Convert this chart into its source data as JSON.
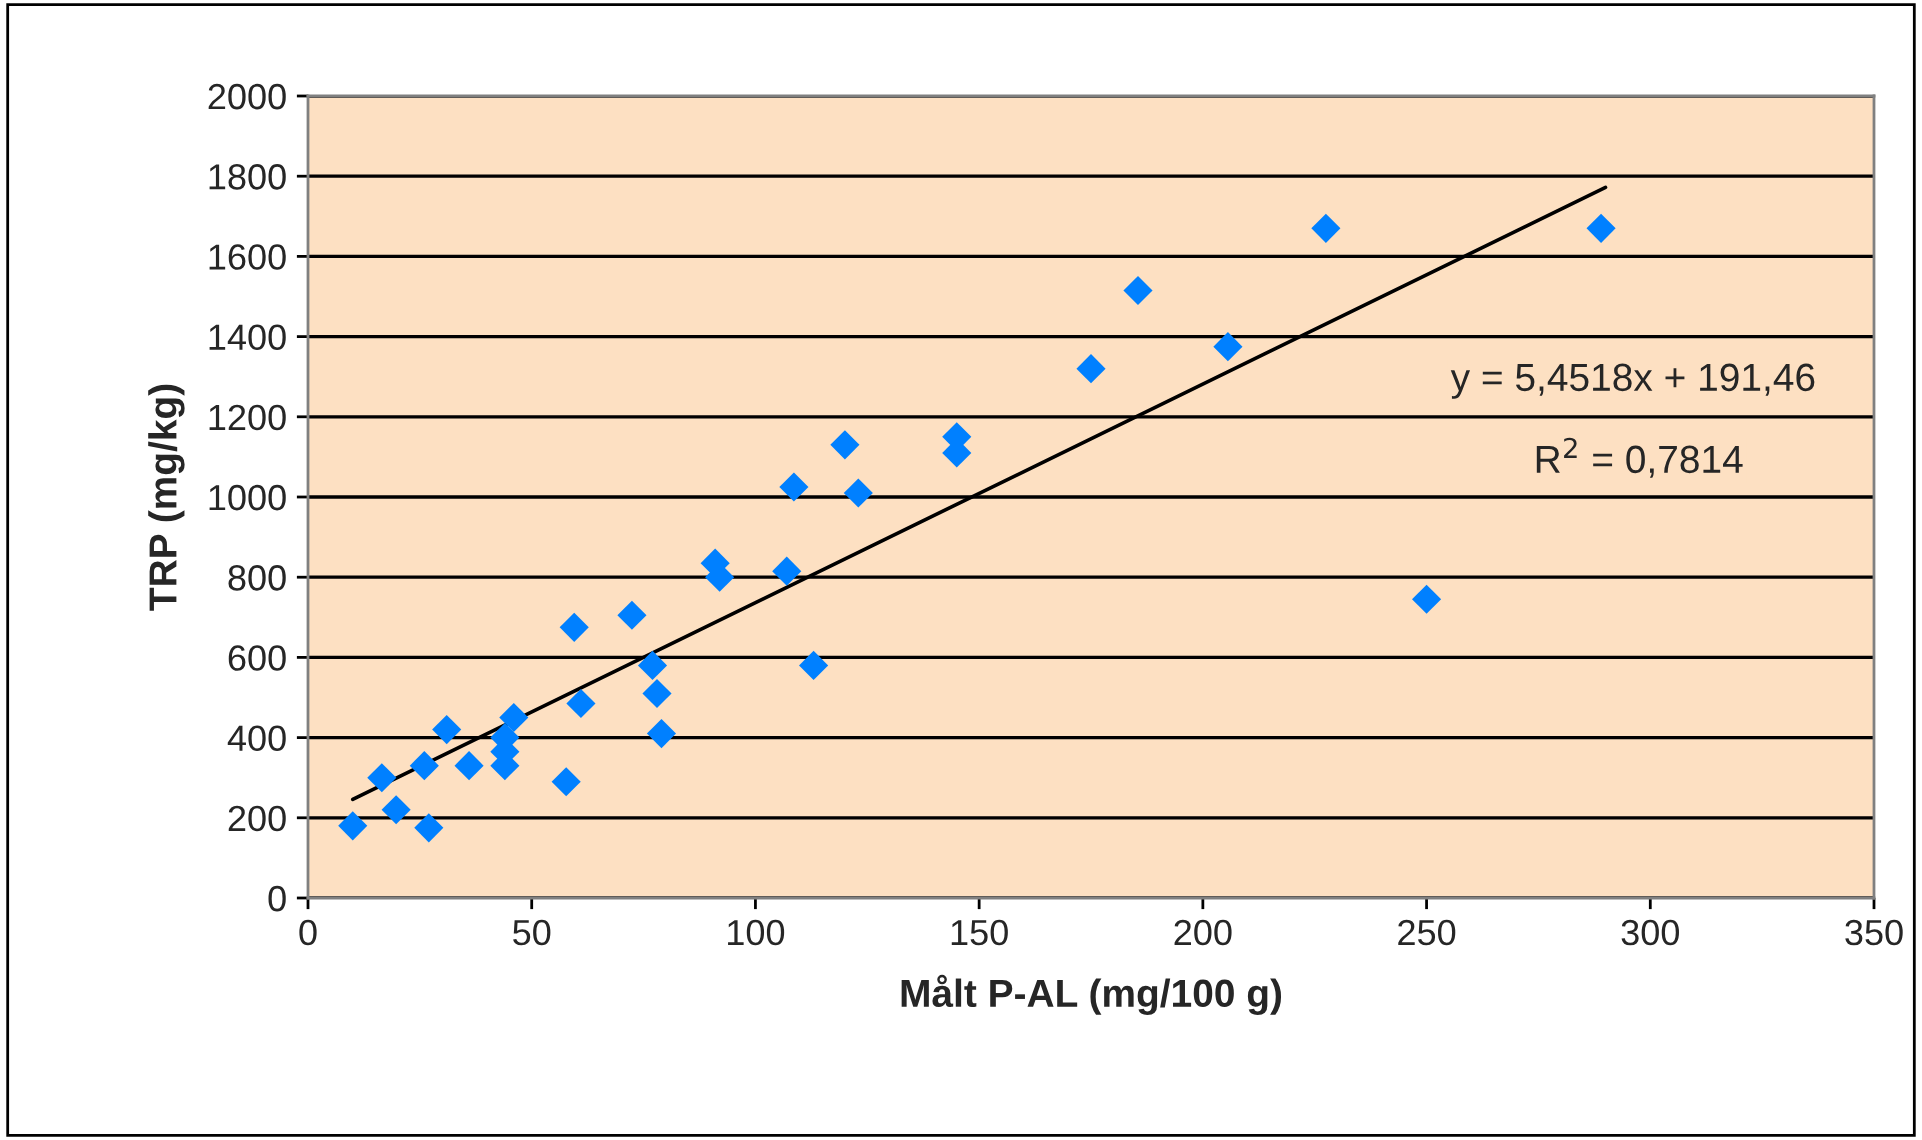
{
  "chart_data": {
    "type": "scatter",
    "xlabel": "Målt P-AL (mg/100 g)",
    "ylabel": "TRP (mg/kg)",
    "xlim": [
      0,
      350
    ],
    "xticks": [
      0,
      50,
      100,
      150,
      200,
      250,
      300,
      350
    ],
    "ylim": [
      0,
      2000
    ],
    "yticks": [
      0,
      200,
      400,
      600,
      800,
      1000,
      1200,
      1400,
      1600,
      1800,
      2000
    ],
    "grid": "y",
    "legend": false,
    "series": [
      {
        "marker": "diamond",
        "color": "#0080ff",
        "x": [
          10,
          16.5,
          19.7,
          27,
          26,
          31,
          36,
          44,
          44,
          44,
          46,
          57.7,
          59.5,
          61,
          72.4,
          77,
          78,
          79,
          91,
          92,
          107,
          108.6,
          113,
          120,
          123,
          145,
          145,
          175,
          185.5,
          205.6,
          227.5,
          250,
          289
        ],
        "values": [
          180,
          300,
          220,
          175,
          330,
          420,
          330,
          330,
          365,
          400,
          450,
          290,
          675,
          485,
          705,
          580,
          510,
          410,
          835,
          800,
          815,
          1025,
          580,
          1130,
          1010,
          1150,
          1110,
          1320,
          1515,
          1375,
          1670,
          745,
          1670
        ]
      },
      {
        "type": "line",
        "marker": "none",
        "color": "#000000",
        "x": [
          10,
          290
        ],
        "values": [
          246,
          1772
        ]
      }
    ],
    "annotations": [
      "y = 5,4518x + 191,46",
      "R$^{2}$ = 0,7814"
    ]
  }
}
